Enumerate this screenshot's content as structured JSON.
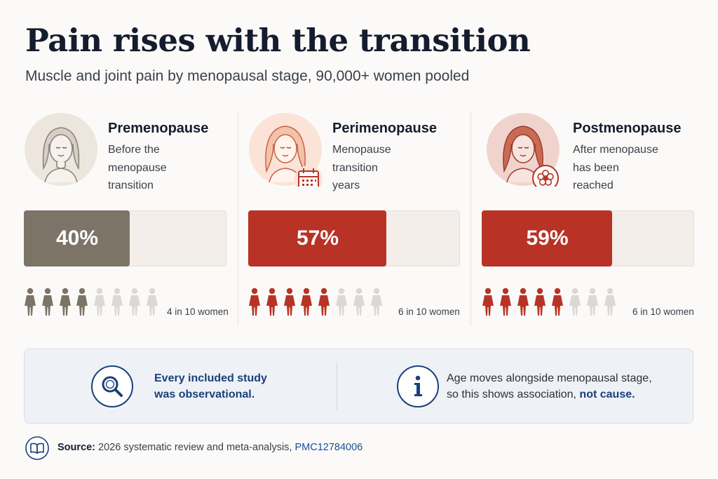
{
  "title": "Pain rises with the transition",
  "subtitle": "Muscle and joint pain by menopausal stage, 90,000+ women pooled",
  "colors": {
    "premenopause": "#7d7468",
    "perimenopause": "#b83325",
    "postmenopause": "#b83325",
    "person_inactive": "#dcd8d4",
    "track": "#f3eee9",
    "info_blue": "#1b3f7a"
  },
  "chart_data": {
    "type": "bar",
    "categories": [
      "Premenopause",
      "Perimenopause",
      "Postmenopause"
    ],
    "values": [
      40,
      57,
      59
    ],
    "value_labels": [
      "40%",
      "57%",
      "59%"
    ],
    "unit": "%",
    "ylim": [
      0,
      100
    ],
    "title": "Pain rises with the transition",
    "subtitle": "Muscle and joint pain by menopausal stage, 90,000+ women pooled"
  },
  "stages": [
    {
      "name": "Premenopause",
      "desc": [
        "Before the",
        "menopause",
        "transition"
      ],
      "pct_label": "40%",
      "value": 40,
      "people_filled": 4,
      "people_total": 8,
      "people_label": "4 in 10 women",
      "avatar_icon": "woman-portrait-icon",
      "badge_icon": null
    },
    {
      "name": "Perimenopause",
      "desc": [
        "Menopause",
        "transition",
        "years"
      ],
      "pct_label": "57%",
      "value": 57,
      "people_filled": 5,
      "people_total": 8,
      "people_label": "6 in 10 women",
      "avatar_icon": "woman-portrait-icon",
      "badge_icon": "calendar-icon"
    },
    {
      "name": "Postmenopause",
      "desc": [
        "After menopause",
        "has been",
        "reached"
      ],
      "pct_label": "59%",
      "value": 59,
      "people_filled": 5,
      "people_total": 8,
      "people_label": "6 in 10 women",
      "avatar_icon": "woman-portrait-icon",
      "badge_icon": "flower-icon"
    }
  ],
  "info": {
    "left_icon": "magnifier-icon",
    "left_lines": [
      "Every included study",
      "was observational."
    ],
    "right_icon": "info-icon",
    "right_line1": "Age moves alongside menopausal stage,",
    "right_line2_pre": "so this shows association, ",
    "right_line2_strong": "not cause."
  },
  "source": {
    "icon": "book-icon",
    "label": "Source:",
    "text": " 2026 systematic review and meta-analysis, ",
    "link": "PMC12784006"
  }
}
